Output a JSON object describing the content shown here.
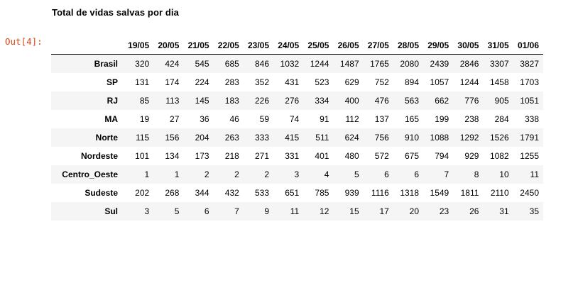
{
  "notebook": {
    "caption": "Total de vidas salvas por dia",
    "output_prompt": "Out[4]:"
  },
  "table": {
    "columns": [
      "19/05",
      "20/05",
      "21/05",
      "22/05",
      "23/05",
      "24/05",
      "25/05",
      "26/05",
      "27/05",
      "28/05",
      "29/05",
      "30/05",
      "31/05",
      "01/06"
    ],
    "rows": [
      {
        "label": "Brasil",
        "values": [
          "320",
          "424",
          "545",
          "685",
          "846",
          "1032",
          "1244",
          "1487",
          "1765",
          "2080",
          "2439",
          "2846",
          "3307",
          "3827"
        ]
      },
      {
        "label": "SP",
        "values": [
          "131",
          "174",
          "224",
          "283",
          "352",
          "431",
          "523",
          "629",
          "752",
          "894",
          "1057",
          "1244",
          "1458",
          "1703"
        ]
      },
      {
        "label": "RJ",
        "values": [
          "85",
          "113",
          "145",
          "183",
          "226",
          "276",
          "334",
          "400",
          "476",
          "563",
          "662",
          "776",
          "905",
          "1051"
        ]
      },
      {
        "label": "MA",
        "values": [
          "19",
          "27",
          "36",
          "46",
          "59",
          "74",
          "91",
          "112",
          "137",
          "165",
          "199",
          "238",
          "284",
          "338"
        ]
      },
      {
        "label": "Norte",
        "values": [
          "115",
          "156",
          "204",
          "263",
          "333",
          "415",
          "511",
          "624",
          "756",
          "910",
          "1088",
          "1292",
          "1526",
          "1791"
        ]
      },
      {
        "label": "Nordeste",
        "values": [
          "101",
          "134",
          "173",
          "218",
          "271",
          "331",
          "401",
          "480",
          "572",
          "675",
          "794",
          "929",
          "1082",
          "1255"
        ]
      },
      {
        "label": "Centro_Oeste",
        "values": [
          "1",
          "1",
          "2",
          "2",
          "2",
          "3",
          "4",
          "5",
          "6",
          "6",
          "7",
          "8",
          "10",
          "11"
        ]
      },
      {
        "label": "Sudeste",
        "values": [
          "202",
          "268",
          "344",
          "432",
          "533",
          "651",
          "785",
          "939",
          "1116",
          "1318",
          "1549",
          "1811",
          "2110",
          "2450"
        ]
      },
      {
        "label": "Sul",
        "values": [
          "3",
          "5",
          "6",
          "7",
          "9",
          "11",
          "12",
          "15",
          "17",
          "20",
          "23",
          "26",
          "31",
          "35"
        ]
      }
    ]
  }
}
